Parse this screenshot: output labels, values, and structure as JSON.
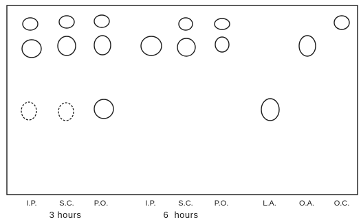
{
  "lanes": [
    {
      "label": "I.P."
    },
    {
      "label": "S.C."
    },
    {
      "label": "P.O."
    },
    {
      "label": "I.P."
    },
    {
      "label": "S.C."
    },
    {
      "label": "P.O."
    },
    {
      "label": "L.A."
    },
    {
      "label": "O.A."
    },
    {
      "label": "O.C."
    }
  ],
  "groups": [
    {
      "label": "3 hours"
    },
    {
      "label": "6  hours"
    }
  ],
  "spots": [
    {
      "lane": "I.P. (3 hours)",
      "row": "top",
      "style": "solid"
    },
    {
      "lane": "I.P. (3 hours)",
      "row": "second",
      "style": "solid"
    },
    {
      "lane": "I.P. (3 hours)",
      "row": "lower",
      "style": "dashed"
    },
    {
      "lane": "S.C. (3 hours)",
      "row": "top",
      "style": "solid"
    },
    {
      "lane": "S.C. (3 hours)",
      "row": "second",
      "style": "solid"
    },
    {
      "lane": "S.C. (3 hours)",
      "row": "lower",
      "style": "dashed"
    },
    {
      "lane": "P.O. (3 hours)",
      "row": "top",
      "style": "solid"
    },
    {
      "lane": "P.O. (3 hours)",
      "row": "second",
      "style": "solid"
    },
    {
      "lane": "P.O. (3 hours)",
      "row": "lower",
      "style": "solid"
    },
    {
      "lane": "I.P. (6 hours)",
      "row": "second",
      "style": "solid"
    },
    {
      "lane": "S.C. (6 hours)",
      "row": "top",
      "style": "solid"
    },
    {
      "lane": "S.C. (6 hours)",
      "row": "second",
      "style": "solid"
    },
    {
      "lane": "P.O. (6 hours)",
      "row": "top",
      "style": "solid"
    },
    {
      "lane": "P.O. (6 hours)",
      "row": "second",
      "style": "solid"
    },
    {
      "lane": "L.A.",
      "row": "lower",
      "style": "solid"
    },
    {
      "lane": "O.A.",
      "row": "second",
      "style": "solid"
    },
    {
      "lane": "O.C.",
      "row": "top",
      "style": "solid"
    }
  ]
}
